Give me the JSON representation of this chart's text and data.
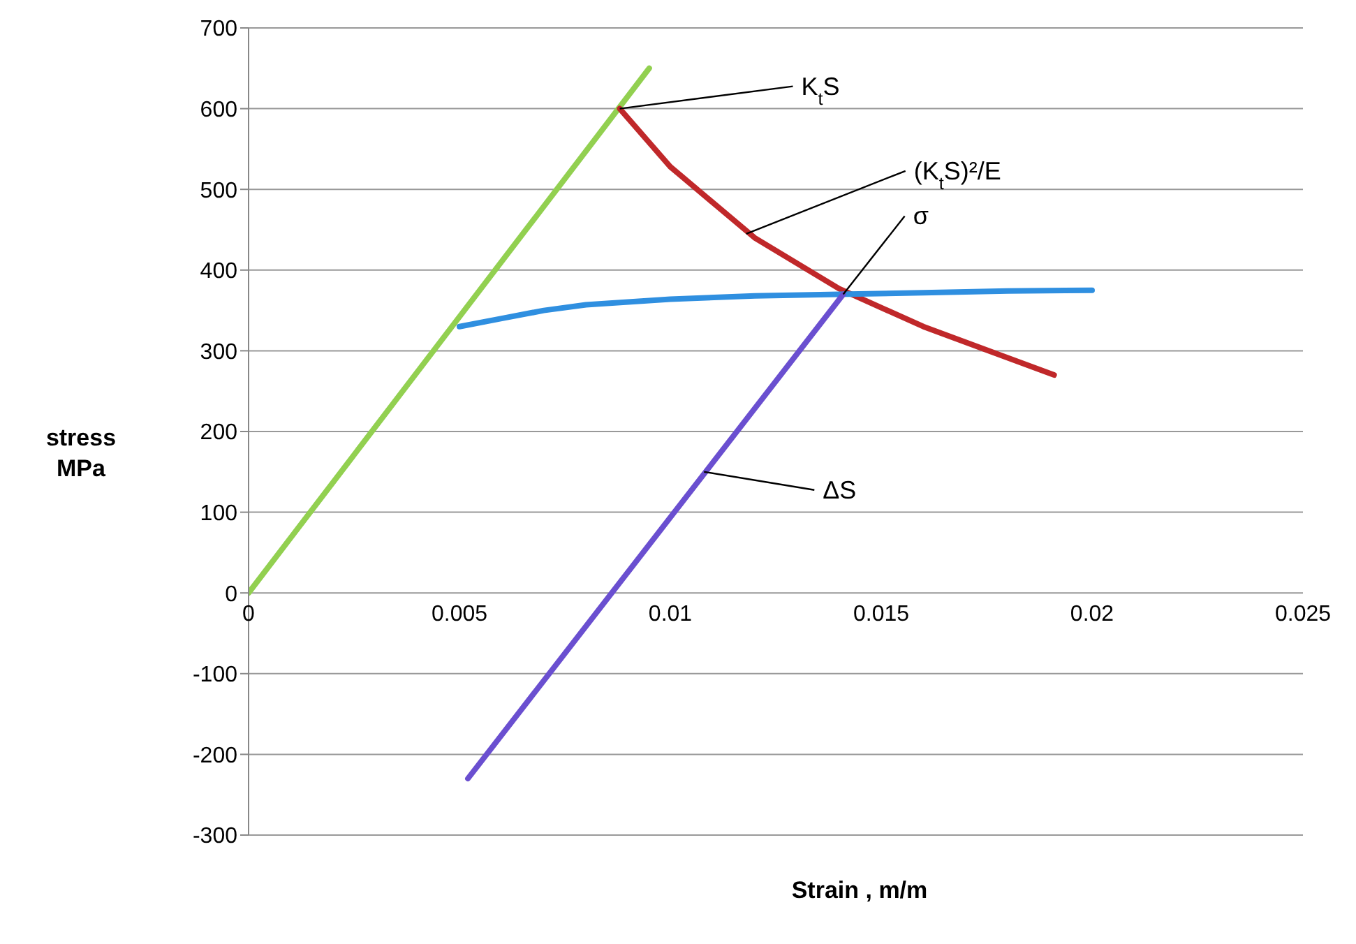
{
  "chart_data": {
    "type": "line",
    "xlabel": "Strain , m/m",
    "ylabel": "stress MPa",
    "xlim": [
      0,
      0.025
    ],
    "xticks": [
      0,
      0.005,
      0.01,
      0.015,
      0.02,
      0.025
    ],
    "ylim": [
      -300,
      700
    ],
    "yticks": [
      -300,
      -200,
      -100,
      0,
      100,
      200,
      300,
      400,
      500,
      600,
      700
    ],
    "grid": "y",
    "marker": "none",
    "line_style": "solid",
    "series": [
      {
        "color": "#92d050",
        "x": [
          0,
          0.0095
        ],
        "values": [
          0,
          650
        ]
      },
      {
        "color": "#c0282a",
        "x": [
          0.0088,
          0.01,
          0.012,
          0.014,
          0.016,
          0.0191
        ],
        "values": [
          600,
          528,
          440,
          377,
          330,
          270
        ]
      },
      {
        "color": "#2f8fe0",
        "x": [
          0.005,
          0.006,
          0.007,
          0.008,
          0.01,
          0.012,
          0.014,
          0.016,
          0.018,
          0.02
        ],
        "values": [
          330,
          340,
          350,
          357,
          364,
          368,
          370,
          372,
          374,
          375
        ]
      },
      {
        "color": "#6a4fd0",
        "x": [
          0.0052,
          0.0141
        ],
        "values": [
          -230,
          370
        ]
      }
    ],
    "annotations": [
      {
        "text": "K$_{t}$S",
        "x": 0.0088,
        "y": 600
      },
      {
        "text": "(K$_{t}$S)²/E",
        "x": 0.0118,
        "y": 445
      },
      {
        "text": "σ",
        "x": 0.0141,
        "y": 370
      },
      {
        "text": "ΔS",
        "x": 0.0108,
        "y": 150
      }
    ]
  }
}
